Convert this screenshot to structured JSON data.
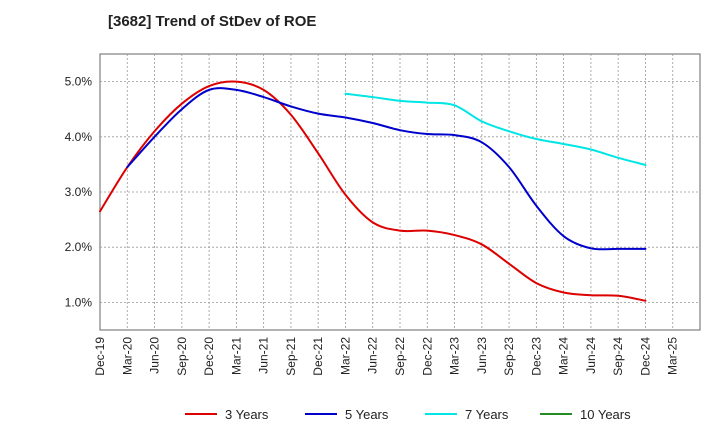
{
  "chart_data": {
    "type": "line",
    "title": "[3682]  Trend of StDev of ROE",
    "xlabel": "",
    "ylabel": "",
    "x_ticks": [
      "Dec-19",
      "Mar-20",
      "Jun-20",
      "Sep-20",
      "Dec-20",
      "Mar-21",
      "Jun-21",
      "Sep-21",
      "Dec-21",
      "Mar-22",
      "Jun-22",
      "Sep-22",
      "Dec-22",
      "Mar-23",
      "Jun-23",
      "Sep-23",
      "Dec-23",
      "Mar-24",
      "Jun-24",
      "Sep-24",
      "Dec-24",
      "Mar-25"
    ],
    "y_ticks": [
      "1.0%",
      "2.0%",
      "3.0%",
      "4.0%",
      "5.0%"
    ],
    "ylim": [
      0.5,
      5.5
    ],
    "y_unit": "%",
    "grid": "dashed",
    "legend_position": "bottom",
    "series": [
      {
        "name": "3 Years",
        "color": "#dd0000",
        "x": [
          "Dec-19",
          "Mar-20",
          "Jun-20",
          "Sep-20",
          "Dec-20",
          "Mar-21",
          "Jun-21",
          "Sep-21",
          "Dec-21",
          "Mar-22",
          "Jun-22",
          "Sep-22",
          "Dec-22",
          "Mar-23",
          "Jun-23",
          "Sep-23",
          "Dec-23",
          "Mar-24",
          "Jun-24",
          "Sep-24",
          "Dec-24"
        ],
        "values": [
          2.65,
          3.45,
          4.1,
          4.6,
          4.92,
          5.0,
          4.85,
          4.4,
          3.7,
          2.95,
          2.45,
          2.3,
          2.3,
          2.22,
          2.05,
          1.7,
          1.35,
          1.18,
          1.13,
          1.12,
          1.03
        ]
      },
      {
        "name": "5 Years",
        "color": "#0000cc",
        "x": [
          "Mar-20",
          "Jun-20",
          "Sep-20",
          "Dec-20",
          "Mar-21",
          "Jun-21",
          "Sep-21",
          "Dec-21",
          "Mar-22",
          "Jun-22",
          "Sep-22",
          "Dec-22",
          "Mar-23",
          "Jun-23",
          "Sep-23",
          "Dec-23",
          "Mar-24",
          "Jun-24",
          "Sep-24",
          "Dec-24"
        ],
        "values": [
          3.45,
          4.0,
          4.5,
          4.85,
          4.85,
          4.72,
          4.55,
          4.42,
          4.35,
          4.25,
          4.12,
          4.05,
          4.03,
          3.9,
          3.45,
          2.75,
          2.2,
          1.98,
          1.97,
          1.97
        ]
      },
      {
        "name": "7 Years",
        "color": "#00e5e5",
        "x": [
          "Mar-22",
          "Jun-22",
          "Sep-22",
          "Dec-22",
          "Mar-23",
          "Jun-23",
          "Sep-23",
          "Dec-23",
          "Mar-24",
          "Jun-24",
          "Sep-24",
          "Dec-24"
        ],
        "values": [
          4.78,
          4.72,
          4.65,
          4.62,
          4.57,
          4.28,
          4.1,
          3.96,
          3.87,
          3.77,
          3.62,
          3.49
        ]
      },
      {
        "name": "10 Years",
        "color": "#228b22",
        "x": [],
        "values": []
      }
    ]
  }
}
